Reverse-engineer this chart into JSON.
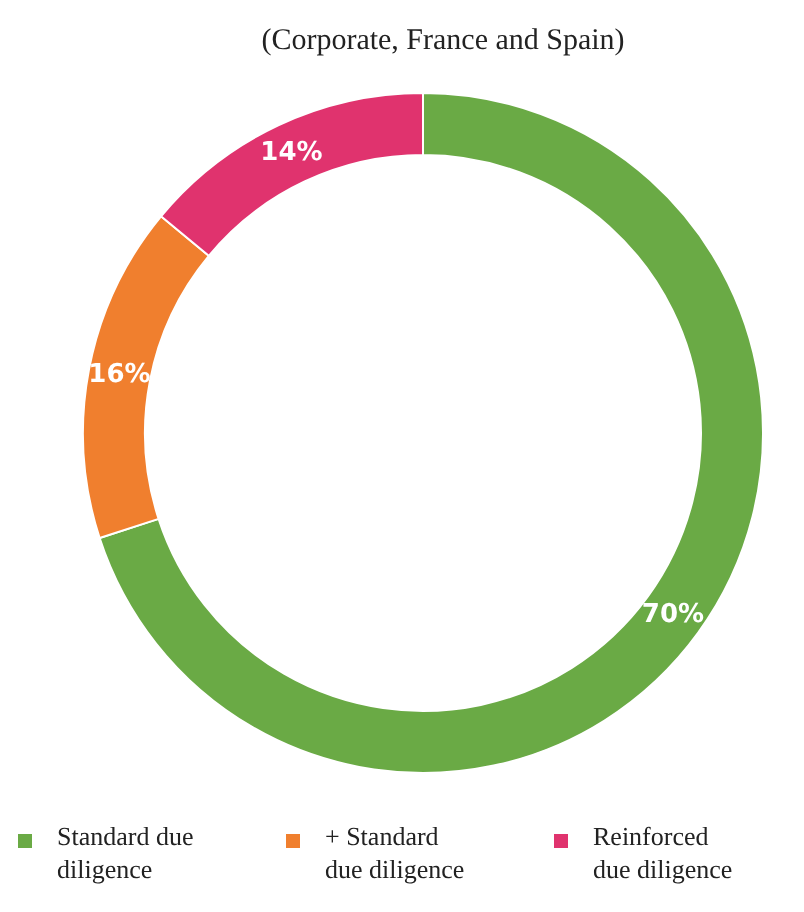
{
  "chart_data": {
    "type": "donut",
    "title": "(Corporate, France and Spain)",
    "categories": [
      "Standard due diligence",
      "+ Standard due diligence",
      "Reinforced due diligence"
    ],
    "values": [
      70,
      16,
      14
    ],
    "colors": [
      "#6aaa45",
      "#f07f2e",
      "#e0336e"
    ],
    "value_labels": [
      "70%",
      "16%",
      "14%"
    ],
    "legend": "bottom"
  }
}
